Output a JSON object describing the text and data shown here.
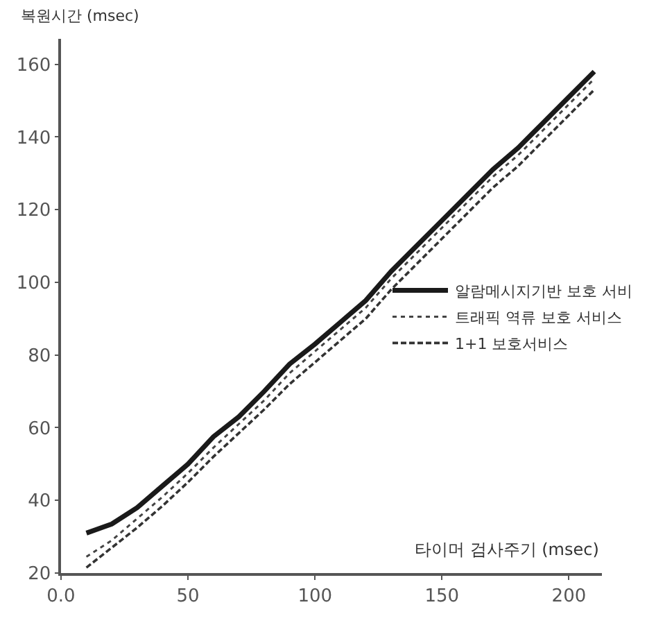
{
  "chart_data": {
    "type": "line",
    "xlabel": "타이머 검사주기 (msec)",
    "ylabel": "복원시간 (msec)",
    "x": [
      10,
      20,
      30,
      40,
      50,
      60,
      70,
      80,
      90,
      100,
      110,
      120,
      130,
      140,
      150,
      160,
      170,
      180,
      190,
      200,
      210
    ],
    "series": [
      {
        "name": "알람메시지기반 보호 서비",
        "color": "#1a1a1a",
        "line_style": "solid",
        "values": [
          31,
          33.5,
          38,
          44,
          50,
          57.5,
          63,
          70,
          77.5,
          83,
          89,
          95,
          103,
          110,
          117,
          124,
          131,
          137,
          144,
          151,
          158
        ]
      },
      {
        "name": "트래픽 역류 보호 서비스",
        "color": "#444444",
        "line_style": "dotted",
        "values": [
          24.5,
          29,
          35,
          41,
          47.5,
          54.5,
          61,
          67.5,
          75,
          81,
          87,
          93,
          101,
          108,
          115,
          122,
          129,
          135,
          142,
          149,
          156
        ]
      },
      {
        "name": "1+1 보호서비스",
        "color": "#333333",
        "line_style": "dashed",
        "values": [
          21.5,
          27,
          32.5,
          38.5,
          45,
          52,
          58.5,
          65,
          72,
          78,
          84,
          90,
          98,
          105,
          112,
          119,
          126,
          132,
          139,
          146,
          153
        ]
      }
    ],
    "xlim": [
      0,
      213
    ],
    "xticks": [
      {
        "value": 0,
        "label": "0.0"
      },
      50,
      100,
      150,
      200
    ],
    "ylim": [
      20,
      167
    ],
    "yticks": [
      20,
      40,
      60,
      80,
      100,
      120,
      140,
      160
    ],
    "legend": "right",
    "marker": "none"
  }
}
